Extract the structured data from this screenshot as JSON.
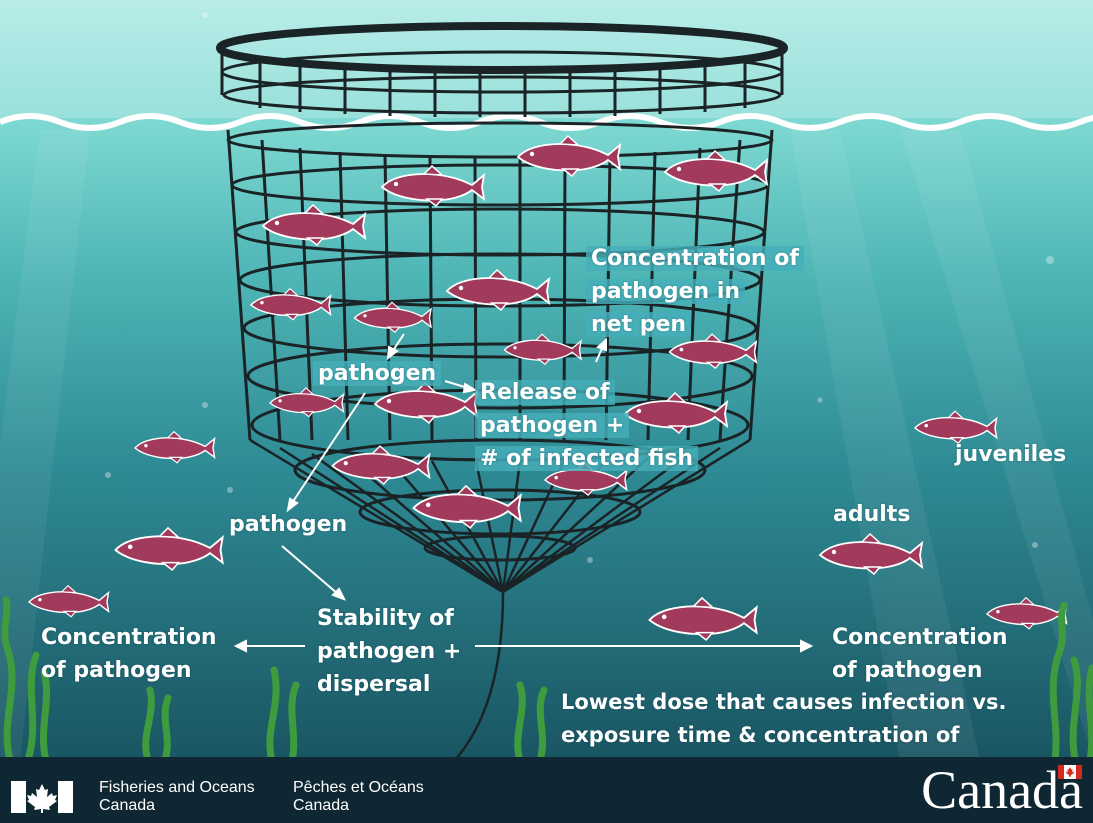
{
  "labels": {
    "concentration_net_pen": [
      "Concentration of",
      "pathogen in",
      "net pen"
    ],
    "pathogen_inside": "pathogen",
    "release": [
      "Release of",
      "pathogen +",
      "# of infected fish"
    ],
    "pathogen_outside": "pathogen",
    "stability": [
      "Stability of",
      "pathogen +",
      "dispersal"
    ],
    "concentration_left": [
      "Concentration",
      "of pathogen"
    ],
    "concentration_right": [
      "Concentration",
      "of pathogen"
    ],
    "lowest_dose": [
      "Lowest dose that causes infection vs.",
      "exposure time & concentration of"
    ],
    "juveniles": "juveniles",
    "adults": "adults"
  },
  "footer": {
    "dept_en": [
      "Fisheries and Oceans",
      "Canada"
    ],
    "dept_fr": [
      "Pêches et Océans",
      "Canada"
    ],
    "wordmark": "Canada"
  },
  "colors": {
    "surface": "#9fe3de",
    "deep_water": "#1f6672",
    "fish": "#a23a5c",
    "net": "#1a2326",
    "seaweed": "#3e9c3e",
    "footer": "#0f2733",
    "flag_red": "#d52b1e"
  }
}
